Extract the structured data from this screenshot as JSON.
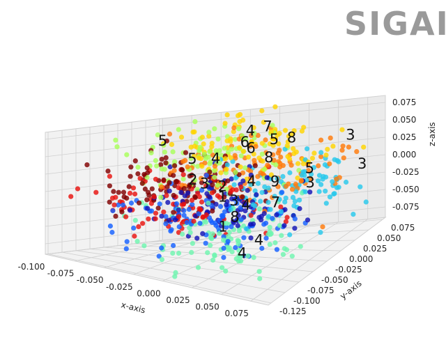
{
  "logo_text": "SIGAI",
  "chart_data": {
    "type": "scatter",
    "projection": "3d",
    "grid": true,
    "xlabel": "x-axis",
    "ylabel": "y-axis",
    "zlabel": "z-axis",
    "xlim": [
      -0.1,
      0.09
    ],
    "ylim": [
      -0.13,
      0.08
    ],
    "zlim": [
      -0.09,
      0.085
    ],
    "xticks": [
      "-0.100",
      "-0.075",
      "-0.050",
      "-0.025",
      "0.000",
      "0.025",
      "0.050",
      "0.075"
    ],
    "yticks": [
      "-0.125",
      "-0.100",
      "-0.075",
      "-0.050",
      "-0.025",
      "0.000",
      "0.025",
      "0.050",
      "0.075"
    ],
    "zticks": [
      "-0.075",
      "-0.050",
      "-0.025",
      "0.000",
      "0.025",
      "0.050",
      "0.075"
    ],
    "colormap": "jet",
    "class_colors": [
      "#800000",
      "#e8120f",
      "#ff7a0a",
      "#ffd400",
      "#a8ff5a",
      "#6ff5b0",
      "#27c8ec",
      "#1560ff",
      "#1414b4"
    ],
    "point_count": 900,
    "labels": [
      {
        "text": "5",
        "x": -0.08,
        "y": 0.03,
        "z": 0.05
      },
      {
        "text": "4",
        "x": -0.01,
        "y": 0.04,
        "z": 0.058
      },
      {
        "text": "7",
        "x": 0.0,
        "y": 0.05,
        "z": 0.06
      },
      {
        "text": "6",
        "x": -0.01,
        "y": 0.03,
        "z": 0.045
      },
      {
        "text": "6",
        "x": 0.0,
        "y": 0.02,
        "z": 0.04
      },
      {
        "text": "5",
        "x": 0.015,
        "y": 0.03,
        "z": 0.048
      },
      {
        "text": "8",
        "x": 0.03,
        "y": 0.03,
        "z": 0.05
      },
      {
        "text": "5",
        "x": -0.05,
        "y": 0.02,
        "z": 0.025
      },
      {
        "text": "4",
        "x": -0.03,
        "y": 0.02,
        "z": 0.025
      },
      {
        "text": "8",
        "x": 0.02,
        "y": 0.01,
        "z": 0.03
      },
      {
        "text": "5",
        "x": 0.05,
        "y": 0.02,
        "z": 0.01
      },
      {
        "text": "3",
        "x": 0.06,
        "y": 0.0,
        "z": 0.0
      },
      {
        "text": "3",
        "x": 0.08,
        "y": 0.03,
        "z": 0.052
      },
      {
        "text": "3",
        "x": 0.09,
        "y": 0.03,
        "z": 0.01
      },
      {
        "text": "2",
        "x": -0.04,
        "y": 0.0,
        "z": 0.0
      },
      {
        "text": "3",
        "x": -0.03,
        "y": 0.0,
        "z": -0.005
      },
      {
        "text": "2",
        "x": -0.01,
        "y": -0.01,
        "z": -0.005
      },
      {
        "text": "4",
        "x": 0.01,
        "y": 0.0,
        "z": 0.0
      },
      {
        "text": "9",
        "x": 0.03,
        "y": 0.0,
        "z": 0.0
      },
      {
        "text": "1",
        "x": -0.01,
        "y": -0.01,
        "z": -0.02
      },
      {
        "text": "3",
        "x": 0.0,
        "y": -0.01,
        "z": -0.025
      },
      {
        "text": "4",
        "x": 0.01,
        "y": -0.01,
        "z": -0.03
      },
      {
        "text": "8",
        "x": 0.01,
        "y": -0.03,
        "z": -0.04
      },
      {
        "text": "7",
        "x": 0.04,
        "y": -0.02,
        "z": -0.02
      },
      {
        "text": "1",
        "x": 0.0,
        "y": -0.03,
        "z": -0.055
      },
      {
        "text": "4",
        "x": 0.04,
        "y": -0.05,
        "z": -0.06
      },
      {
        "text": "4",
        "x": 0.04,
        "y": -0.08,
        "z": -0.065
      }
    ]
  }
}
